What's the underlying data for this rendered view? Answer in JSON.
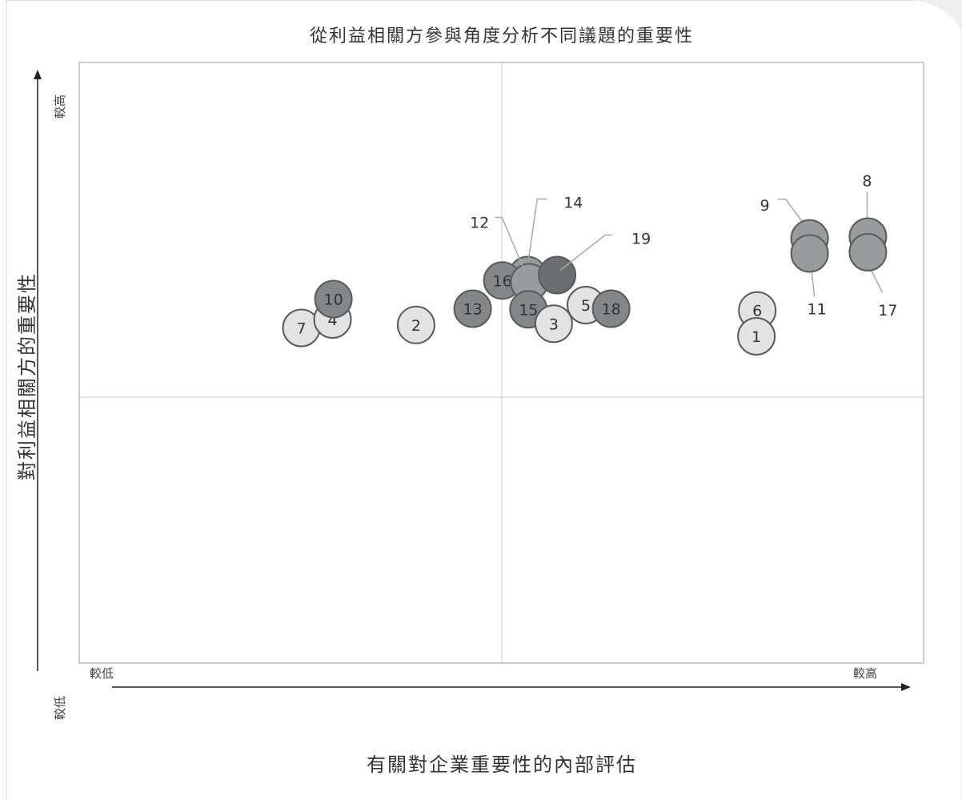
{
  "chart_data": {
    "type": "scatter",
    "title": "從利益相關方參與角度分析不同議題的重要性",
    "xlabel": "有關對企業重要性的內部評估",
    "ylabel": "對利益相關方的重要性",
    "x_tick_low": "較低",
    "x_tick_high": "較高",
    "y_tick_low": "較低",
    "y_tick_high": "較高",
    "xlim": [
      0,
      100
    ],
    "ylim": [
      0,
      100
    ],
    "grid": false,
    "legend": "none",
    "colors": {
      "light": "#e3e3e4",
      "medium": "#9a9b9d",
      "dark": "#858688",
      "darkest": "#6d6e71",
      "stroke": "#5a5b5d",
      "leader": "#a8a9ab"
    },
    "points": [
      {
        "id": "1",
        "x": 80.2,
        "y": 54.4,
        "shade": "light",
        "label_mode": "inside"
      },
      {
        "id": "2",
        "x": 39.9,
        "y": 56.3,
        "shade": "light",
        "label_mode": "inside"
      },
      {
        "id": "3",
        "x": 56.2,
        "y": 56.5,
        "shade": "light",
        "label_mode": "inside"
      },
      {
        "id": "4",
        "x": 30.0,
        "y": 57.2,
        "shade": "light",
        "label_mode": "inside"
      },
      {
        "id": "5",
        "x": 60.0,
        "y": 59.6,
        "shade": "light",
        "label_mode": "inside"
      },
      {
        "id": "6",
        "x": 80.3,
        "y": 58.7,
        "shade": "light",
        "label_mode": "inside"
      },
      {
        "id": "7",
        "x": 26.3,
        "y": 55.8,
        "shade": "light",
        "label_mode": "inside"
      },
      {
        "id": "8",
        "x": 93.4,
        "y": 71.0,
        "shade": "medium",
        "label_mode": "callout"
      },
      {
        "id": "9",
        "x": 86.5,
        "y": 70.7,
        "shade": "medium",
        "label_mode": "callout"
      },
      {
        "id": "10",
        "x": 30.1,
        "y": 60.6,
        "shade": "dark",
        "label_mode": "inside"
      },
      {
        "id": "11",
        "x": 86.5,
        "y": 68.2,
        "shade": "medium",
        "label_mode": "callout"
      },
      {
        "id": "12",
        "x": 53.1,
        "y": 64.6,
        "shade": "medium",
        "label_mode": "callout"
      },
      {
        "id": "13",
        "x": 46.6,
        "y": 59.0,
        "shade": "dark",
        "label_mode": "inside"
      },
      {
        "id": "14",
        "x": 53.3,
        "y": 63.4,
        "shade": "medium",
        "label_mode": "callout"
      },
      {
        "id": "15",
        "x": 53.2,
        "y": 58.9,
        "shade": "dark",
        "label_mode": "inside"
      },
      {
        "id": "16",
        "x": 50.1,
        "y": 63.7,
        "shade": "dark",
        "label_mode": "inside"
      },
      {
        "id": "17",
        "x": 93.4,
        "y": 68.4,
        "shade": "medium",
        "label_mode": "callout"
      },
      {
        "id": "18",
        "x": 63.0,
        "y": 59.0,
        "shade": "dark",
        "label_mode": "inside"
      },
      {
        "id": "19",
        "x": 56.6,
        "y": 64.6,
        "shade": "darkest",
        "label_mode": "callout"
      }
    ]
  }
}
